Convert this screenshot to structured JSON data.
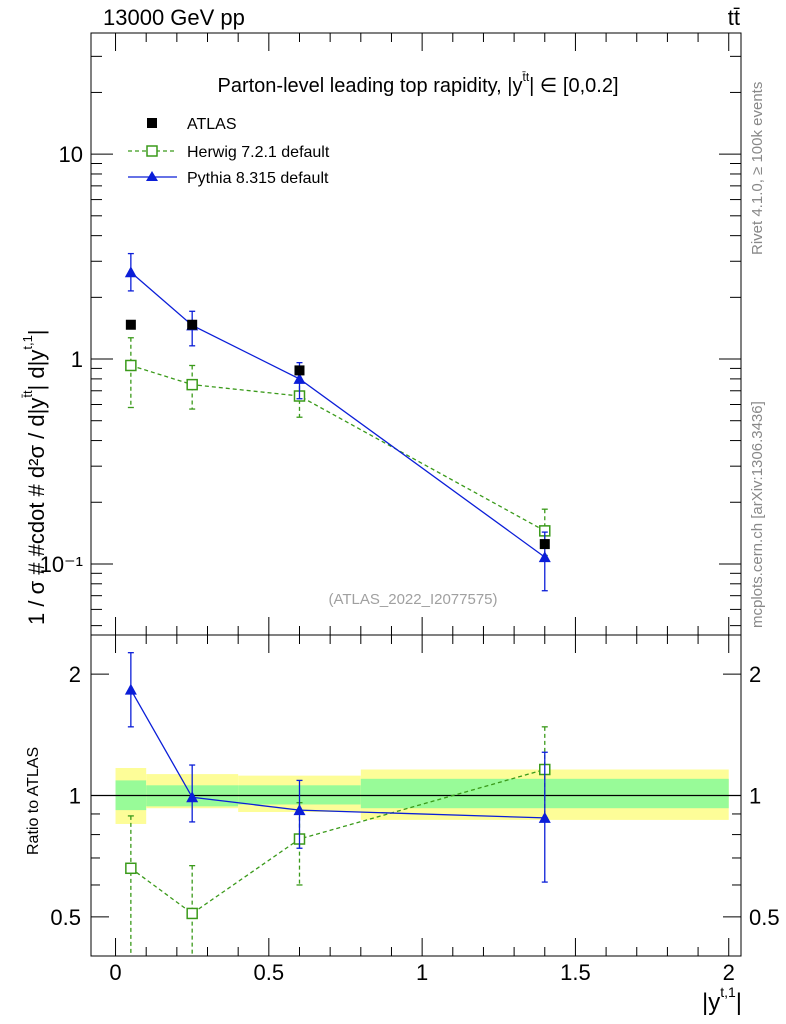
{
  "header": {
    "energy": "13000 GeV pp",
    "process": "tt̄"
  },
  "side_labels": {
    "rivet": "Rivet 4.1.0, ≥ 100k events",
    "mcplots": "mcplots.cern.ch [arXiv:1306.3436]"
  },
  "colors": {
    "atlas": "#000000",
    "herwig": "#3a9a1a",
    "pythia": "#0b1ed8",
    "band_inner": "#98fb98",
    "band_outer": "#fdfd98",
    "watermark": "#a0a0a0"
  },
  "chart_data": [
    {
      "type": "scatter",
      "panel": "main",
      "title": "Parton-level leading top rapidity, |y",
      "title_sup": "t̄t",
      "title_tail": "| ∈ [0,0.2]",
      "xlabel": "|y",
      "xlabel_sup": "t,1",
      "xlabel_tail": "|",
      "ylabel": "1 / σ # #cdot # d²σ / d|y",
      "ylabel_sup1": "t̄t",
      "ylabel_mid": "| d|y",
      "ylabel_sup2": "t,1",
      "ylabel_tail": "|",
      "yscale": "log",
      "xlim": [
        -0.08,
        2.04
      ],
      "ylim": [
        0.045,
        39
      ],
      "y_ticks": [
        {
          "value": 0.1,
          "label": "10⁻¹"
        },
        {
          "value": 1,
          "label": "1"
        },
        {
          "value": 10,
          "label": "10"
        }
      ],
      "watermark": "(ATLAS_2022_I2077575)",
      "legend": [
        "ATLAS",
        "Herwig 7.2.1 default",
        "Pythia 8.315 default"
      ],
      "series": [
        {
          "name": "ATLAS",
          "x": [
            0.05,
            0.25,
            0.6,
            1.4
          ],
          "y": [
            1.47,
            1.47,
            0.88,
            0.125
          ],
          "err": [
            0.0,
            0.0,
            0.0,
            0.0
          ]
        },
        {
          "name": "Herwig 7.2.1 default",
          "x": [
            0.05,
            0.25,
            0.6,
            1.4
          ],
          "y": [
            0.93,
            0.75,
            0.66,
            0.145
          ],
          "err_low": [
            0.35,
            0.18,
            0.14,
            0.035
          ],
          "err_high": [
            0.34,
            0.18,
            0.14,
            0.04
          ]
        },
        {
          "name": "Pythia 8.315 default",
          "x": [
            0.05,
            0.25,
            0.6,
            1.4
          ],
          "y": [
            2.65,
            1.46,
            0.8,
            0.108
          ],
          "err_low": [
            0.5,
            0.3,
            0.16,
            0.034
          ],
          "err_high": [
            0.62,
            0.25,
            0.16,
            0.035
          ]
        }
      ]
    },
    {
      "type": "scatter",
      "panel": "ratio",
      "ylabel": "Ratio to ATLAS",
      "yscale": "log",
      "xlim": [
        -0.08,
        2.04
      ],
      "ylim": [
        0.4,
        2.5
      ],
      "x_ticks": [
        {
          "value": 0,
          "label": "0"
        },
        {
          "value": 0.5,
          "label": "0.5"
        },
        {
          "value": 1,
          "label": "1"
        },
        {
          "value": 1.5,
          "label": "1.5"
        },
        {
          "value": 2,
          "label": "2"
        }
      ],
      "y_ticks": [
        {
          "value": 0.5,
          "label": "0.5"
        },
        {
          "value": 1,
          "label": "1"
        },
        {
          "value": 2,
          "label": "2"
        }
      ],
      "bands": [
        {
          "x0": 0.0,
          "x1": 0.1,
          "inner": [
            0.92,
            1.09
          ],
          "outer": [
            0.85,
            1.17
          ]
        },
        {
          "x0": 0.1,
          "x1": 0.4,
          "inner": [
            0.94,
            1.06
          ],
          "outer": [
            0.93,
            1.13
          ]
        },
        {
          "x0": 0.4,
          "x1": 0.8,
          "inner": [
            0.95,
            1.06
          ],
          "outer": [
            0.91,
            1.12
          ]
        },
        {
          "x0": 0.8,
          "x1": 2.0,
          "inner": [
            0.93,
            1.1
          ],
          "outer": [
            0.87,
            1.16
          ]
        }
      ],
      "series": [
        {
          "name": "Herwig 7.2.1 default",
          "x": [
            0.05,
            0.25,
            0.6,
            1.4
          ],
          "y": [
            0.66,
            0.51,
            0.78,
            1.16
          ],
          "err_low": [
            0.4,
            0.18,
            0.18,
            0.28
          ],
          "err_high": [
            0.23,
            0.16,
            0.18,
            0.32
          ]
        },
        {
          "name": "Pythia 8.315 default",
          "x": [
            0.05,
            0.25,
            0.6,
            1.4
          ],
          "y": [
            1.83,
            0.99,
            0.92,
            0.88
          ],
          "err_low": [
            0.35,
            0.13,
            0.18,
            0.27
          ],
          "err_high": [
            0.43,
            0.2,
            0.17,
            0.4
          ]
        }
      ]
    }
  ]
}
